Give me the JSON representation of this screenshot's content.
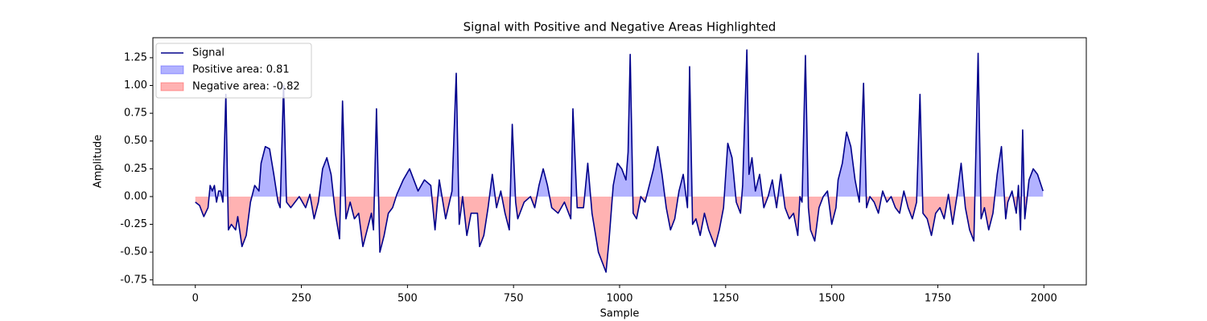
{
  "chart_data": {
    "type": "line",
    "title": "Signal with Positive and Negative Areas Highlighted",
    "xlabel": "Sample",
    "ylabel": "Amplitude",
    "xlim": [
      -100,
      2100
    ],
    "xticks": [
      0,
      250,
      500,
      750,
      1000,
      1250,
      1500,
      1750,
      2000
    ],
    "ylim": [
      -0.795,
      1.43
    ],
    "yticks": [
      -0.75,
      {
        "value": -0.5,
        "label": "-0.50"
      },
      -0.25,
      {
        "value": 0,
        "label": "0.00"
      },
      0.25,
      {
        "value": 0.5,
        "label": "0.50"
      },
      0.75,
      {
        "value": 1,
        "label": "1.00"
      },
      1.25
    ],
    "legend": "upper left",
    "x": [
      0,
      10,
      20,
      30,
      35,
      40,
      45,
      50,
      55,
      60,
      65,
      72,
      78,
      85,
      95,
      100,
      110,
      120,
      130,
      140,
      150,
      155,
      165,
      175,
      185,
      195,
      200,
      208,
      215,
      225,
      235,
      245,
      260,
      270,
      280,
      290,
      300,
      310,
      320,
      330,
      340,
      347,
      355,
      365,
      375,
      385,
      395,
      405,
      415,
      420,
      427,
      435,
      445,
      455,
      465,
      475,
      490,
      505,
      515,
      525,
      540,
      555,
      565,
      575,
      590,
      605,
      615,
      622,
      630,
      640,
      650,
      665,
      670,
      680,
      690,
      700,
      710,
      720,
      730,
      740,
      747,
      755,
      760,
      775,
      790,
      800,
      810,
      820,
      830,
      840,
      855,
      870,
      885,
      890,
      900,
      915,
      925,
      935,
      950,
      960,
      968,
      975,
      985,
      995,
      1005,
      1015,
      1020,
      1025,
      1032,
      1040,
      1050,
      1060,
      1070,
      1080,
      1090,
      1100,
      1110,
      1120,
      1130,
      1140,
      1150,
      1160,
      1165,
      1172,
      1180,
      1190,
      1200,
      1210,
      1225,
      1235,
      1245,
      1255,
      1265,
      1275,
      1285,
      1290,
      1300,
      1305,
      1312,
      1320,
      1330,
      1340,
      1350,
      1360,
      1370,
      1380,
      1390,
      1400,
      1410,
      1420,
      1425,
      1430,
      1438,
      1445,
      1450,
      1460,
      1470,
      1480,
      1490,
      1500,
      1510,
      1515,
      1525,
      1535,
      1545,
      1555,
      1565,
      1575,
      1582,
      1590,
      1600,
      1610,
      1620,
      1630,
      1640,
      1650,
      1660,
      1670,
      1680,
      1690,
      1700,
      1708,
      1715,
      1725,
      1735,
      1745,
      1755,
      1765,
      1775,
      1785,
      1795,
      1805,
      1815,
      1825,
      1835,
      1845,
      1852,
      1860,
      1870,
      1880,
      1890,
      1900,
      1910,
      1915,
      1925,
      1935,
      1940,
      1945,
      1950,
      1955,
      1965,
      1975,
      1985,
      1998
    ],
    "series": [
      {
        "name": "Signal",
        "color": "#00008b",
        "values": [
          -0.05,
          -0.08,
          -0.18,
          -0.1,
          0.1,
          0.05,
          0.1,
          -0.05,
          0.05,
          0.05,
          -0.05,
          0.92,
          -0.3,
          -0.25,
          -0.3,
          -0.18,
          -0.45,
          -0.35,
          -0.05,
          0.1,
          0.05,
          0.3,
          0.45,
          0.43,
          0.2,
          -0.05,
          -0.1,
          1.0,
          -0.05,
          -0.1,
          -0.05,
          0.0,
          -0.1,
          0.02,
          -0.2,
          -0.05,
          0.25,
          0.35,
          0.2,
          -0.15,
          -0.38,
          0.86,
          -0.2,
          -0.05,
          -0.2,
          -0.15,
          -0.45,
          -0.3,
          -0.15,
          -0.3,
          0.79,
          -0.5,
          -0.35,
          -0.15,
          -0.1,
          0.02,
          0.15,
          0.25,
          0.15,
          0.05,
          0.15,
          0.1,
          -0.3,
          0.15,
          -0.2,
          0.05,
          1.11,
          -0.25,
          0.0,
          -0.35,
          -0.15,
          -0.15,
          -0.45,
          -0.35,
          -0.1,
          0.2,
          -0.1,
          0.05,
          -0.15,
          -0.3,
          0.65,
          -0.05,
          -0.2,
          -0.05,
          0.0,
          -0.1,
          0.1,
          0.25,
          0.1,
          -0.1,
          -0.15,
          -0.05,
          -0.2,
          0.79,
          -0.1,
          -0.1,
          0.3,
          -0.15,
          -0.5,
          -0.6,
          -0.68,
          -0.4,
          0.1,
          0.3,
          0.25,
          0.15,
          0.4,
          1.28,
          -0.15,
          -0.2,
          0.0,
          -0.05,
          0.1,
          0.25,
          0.45,
          0.2,
          -0.1,
          -0.3,
          -0.2,
          0.05,
          0.2,
          -0.1,
          1.17,
          -0.25,
          -0.2,
          -0.35,
          -0.15,
          -0.3,
          -0.45,
          -0.3,
          -0.1,
          0.48,
          0.35,
          -0.05,
          -0.15,
          0.1,
          1.32,
          0.2,
          0.35,
          0.05,
          0.2,
          -0.1,
          0.0,
          0.15,
          -0.1,
          0.2,
          -0.1,
          -0.2,
          -0.15,
          -0.35,
          0.0,
          -0.05,
          1.27,
          -0.1,
          -0.3,
          -0.4,
          -0.1,
          0.0,
          0.05,
          -0.25,
          -0.1,
          0.15,
          0.3,
          0.58,
          0.45,
          0.15,
          -0.05,
          1.02,
          -0.1,
          0.0,
          -0.05,
          -0.15,
          0.05,
          -0.05,
          0.0,
          -0.1,
          -0.15,
          0.05,
          -0.1,
          -0.2,
          -0.05,
          0.92,
          -0.15,
          -0.2,
          -0.35,
          -0.15,
          -0.1,
          -0.2,
          0.02,
          -0.25,
          0.0,
          0.3,
          -0.1,
          -0.3,
          -0.4,
          1.29,
          -0.2,
          -0.1,
          -0.3,
          -0.15,
          0.2,
          0.45,
          -0.2,
          -0.05,
          0.05,
          -0.15,
          0.1,
          -0.3,
          0.6,
          -0.2,
          0.15,
          0.25,
          0.2,
          0.05
        ]
      }
    ],
    "fills": [
      {
        "name": "Positive area: 0.81",
        "color": "#0000ff",
        "side": "positive"
      },
      {
        "name": "Negative area: -0.82",
        "color": "#ff0000",
        "side": "negative"
      }
    ]
  }
}
